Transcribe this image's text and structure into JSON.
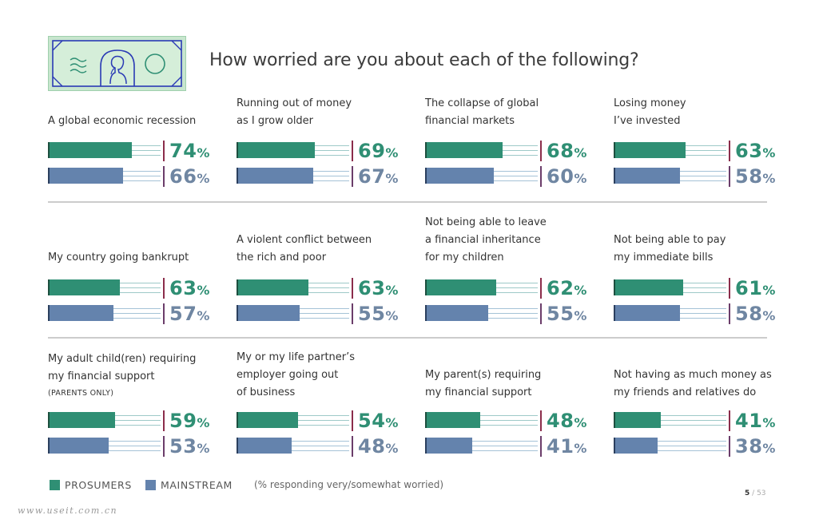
{
  "title": "How worried are you about each of the following?",
  "colors": {
    "prosumers": "#2f8f74",
    "mainstream": "#6483ad",
    "banknote_bg": "#c8e6ce",
    "banknote_ink": "#2a3ab5"
  },
  "legend": {
    "prosumers": "PROSUMERS",
    "mainstream": "MAINSTREAM",
    "note": "(% responding very/somewhat worried)"
  },
  "percent_symbol": "%",
  "page": {
    "current": "5",
    "separator": "/",
    "total": "53"
  },
  "watermark": "www.useit.com.cn",
  "chart_data": {
    "type": "bar",
    "title": "How worried are you about each of the following?",
    "series_names": [
      "PROSUMERS",
      "MAINSTREAM"
    ],
    "value_range": [
      0,
      100
    ],
    "items": [
      {
        "label": [
          "A global economic recession"
        ],
        "prosumers": 74,
        "mainstream": 66
      },
      {
        "label": [
          "Running out of money",
          "as I grow older"
        ],
        "prosumers": 69,
        "mainstream": 67
      },
      {
        "label": [
          "The collapse of global",
          "financial markets"
        ],
        "prosumers": 68,
        "mainstream": 60
      },
      {
        "label": [
          "Losing money",
          "I’ve invested"
        ],
        "prosumers": 63,
        "mainstream": 58
      },
      {
        "label": [
          "My country going bankrupt"
        ],
        "prosumers": 63,
        "mainstream": 57
      },
      {
        "label": [
          "A violent conflict between",
          "the rich and poor"
        ],
        "prosumers": 63,
        "mainstream": 55
      },
      {
        "label": [
          "Not being able to leave",
          "a financial inheritance",
          "for my children"
        ],
        "prosumers": 62,
        "mainstream": 55
      },
      {
        "label": [
          "Not being able to pay",
          "my immediate bills"
        ],
        "prosumers": 61,
        "mainstream": 58
      },
      {
        "label": [
          "My adult child(ren) requiring",
          "my financial support"
        ],
        "note": "(PARENTS ONLY)",
        "prosumers": 59,
        "mainstream": 53
      },
      {
        "label": [
          "My or my life partner’s",
          "employer going out",
          "of business"
        ],
        "prosumers": 54,
        "mainstream": 48
      },
      {
        "label": [
          "My parent(s) requiring",
          "my financial support"
        ],
        "prosumers": 48,
        "mainstream": 41
      },
      {
        "label": [
          "Not having as much money as",
          "my friends and relatives do"
        ],
        "prosumers": 41,
        "mainstream": 38
      }
    ]
  }
}
